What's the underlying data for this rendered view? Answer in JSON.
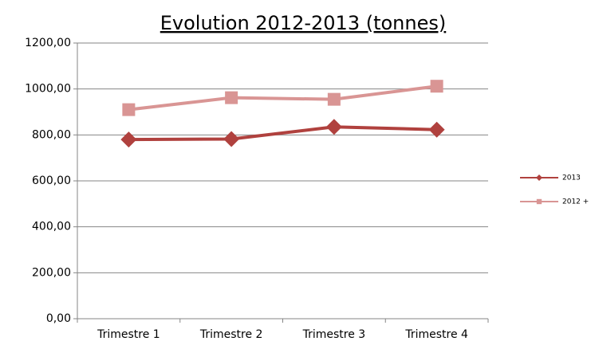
{
  "chart_data": {
    "type": "line",
    "title": "Evolution 2012-2013 (tonnes)",
    "categories": [
      "Trimestre 1",
      "Trimestre 2",
      "Trimestre 3",
      "Trimestre 4"
    ],
    "series": [
      {
        "name": "2013",
        "color": "#b0413e",
        "marker": "diamond",
        "values": [
          780,
          782,
          835,
          823
        ]
      },
      {
        "name": "2012 +",
        "color": "#d99594",
        "marker": "square",
        "values": [
          910,
          962,
          955,
          1012
        ]
      }
    ],
    "ylim": [
      0,
      1200
    ],
    "yticks": [
      {
        "value": 0,
        "label": "0,00"
      },
      {
        "value": 200,
        "label": "200,00"
      },
      {
        "value": 400,
        "label": "400,00"
      },
      {
        "value": 600,
        "label": "600,00"
      },
      {
        "value": 800,
        "label": "800,00"
      },
      {
        "value": 1000,
        "label": "1000,00"
      },
      {
        "value": 1200,
        "label": "1200,00"
      }
    ],
    "grid": true,
    "legend": "right"
  }
}
